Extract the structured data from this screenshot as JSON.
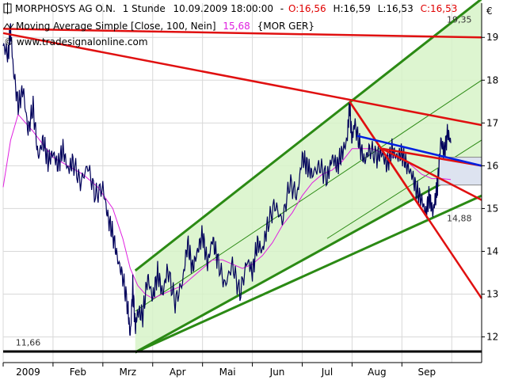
{
  "header": {
    "line1": {
      "name": "MORPHOSYS AG O.N.",
      "interval": "1 Stunde",
      "datetime": "10.09.2009 18:00:00",
      "sep": "-",
      "open": "O:16,56",
      "high": "H:16,59",
      "low": "L:16,53",
      "close": "C:16,53"
    },
    "line2": {
      "label": "Moving Average Simple [Close, 100, Nein]",
      "value": "15,68",
      "instrument": "{MOR GER}"
    },
    "watermark": "© www.tradesignalonline.com"
  },
  "colors": {
    "price": "#00005a",
    "moving_average": "#e020e0",
    "channel_green": "#2b8a14",
    "channel_fill": "#d7f3c8",
    "trend_red": "#e01010",
    "trend_blue": "#0020e0",
    "box_fill": "#dde3f0",
    "support": "#000000",
    "grid": "#d8d8d8",
    "open_value": "#e00000",
    "close_value": "#e00000",
    "ma_value": "#e020e0"
  },
  "chart_data": {
    "type": "line",
    "title": "MORPHOSYS AG O.N. 1 Stunde",
    "currency": "€",
    "y_axis_ticks": [
      "19",
      "18",
      "17",
      "16",
      "15",
      "14",
      "13",
      "12"
    ],
    "ylim": [
      11.4,
      19.8
    ],
    "x_axis_labels": [
      "2009",
      "Feb",
      "Mrz",
      "Apr",
      "Mai",
      "Jun",
      "Jul",
      "Aug",
      "Sep"
    ],
    "x_index_range": [
      0,
      9.6
    ],
    "x_label_index": [
      0.5,
      1.5,
      2.5,
      3.5,
      4.5,
      5.5,
      6.5,
      7.5,
      8.5
    ],
    "price_anchors": [
      [
        0,
        18.8
      ],
      [
        0.1,
        18.6
      ],
      [
        0.15,
        19.2
      ],
      [
        0.2,
        18.3
      ],
      [
        0.3,
        17.4
      ],
      [
        0.4,
        17.8
      ],
      [
        0.5,
        16.8
      ],
      [
        0.6,
        17.4
      ],
      [
        0.7,
        16.2
      ],
      [
        0.8,
        16.6
      ],
      [
        0.9,
        16.1
      ],
      [
        1.0,
        16.3
      ],
      [
        1.1,
        16.0
      ],
      [
        1.2,
        16.4
      ],
      [
        1.3,
        15.9
      ],
      [
        1.4,
        16.1
      ],
      [
        1.55,
        15.6
      ],
      [
        1.7,
        16.0
      ],
      [
        1.85,
        15.3
      ],
      [
        2.0,
        15.5
      ],
      [
        2.1,
        14.8
      ],
      [
        2.2,
        14.4
      ],
      [
        2.3,
        13.8
      ],
      [
        2.4,
        13.4
      ],
      [
        2.5,
        12.7
      ],
      [
        2.55,
        12.0
      ],
      [
        2.6,
        13.2
      ],
      [
        2.65,
        12.2
      ],
      [
        2.7,
        12.6
      ],
      [
        2.8,
        12.5
      ],
      [
        2.9,
        13.4
      ],
      [
        3.0,
        12.9
      ],
      [
        3.1,
        13.5
      ],
      [
        3.2,
        13.0
      ],
      [
        3.3,
        13.6
      ],
      [
        3.45,
        12.8
      ],
      [
        3.6,
        13.3
      ],
      [
        3.7,
        14.2
      ],
      [
        3.8,
        13.6
      ],
      [
        3.9,
        14.0
      ],
      [
        4.0,
        14.4
      ],
      [
        4.1,
        13.7
      ],
      [
        4.2,
        14.3
      ],
      [
        4.3,
        13.8
      ],
      [
        4.45,
        13.2
      ],
      [
        4.6,
        13.7
      ],
      [
        4.75,
        13.0
      ],
      [
        4.9,
        13.8
      ],
      [
        5.0,
        13.5
      ],
      [
        5.1,
        14.2
      ],
      [
        5.2,
        14.0
      ],
      [
        5.3,
        14.6
      ],
      [
        5.45,
        15.1
      ],
      [
        5.6,
        14.7
      ],
      [
        5.75,
        15.6
      ],
      [
        5.9,
        15.3
      ],
      [
        6.0,
        16.2
      ],
      [
        6.1,
        16.0
      ],
      [
        6.2,
        15.8
      ],
      [
        6.35,
        16.0
      ],
      [
        6.5,
        15.7
      ],
      [
        6.6,
        16.2
      ],
      [
        6.7,
        16.0
      ],
      [
        6.8,
        16.3
      ],
      [
        6.9,
        16.6
      ],
      [
        6.95,
        17.4
      ],
      [
        7.0,
        16.6
      ],
      [
        7.05,
        17.0
      ],
      [
        7.15,
        16.5
      ],
      [
        7.25,
        16.1
      ],
      [
        7.35,
        16.4
      ],
      [
        7.5,
        16.2
      ],
      [
        7.6,
        16.3
      ],
      [
        7.7,
        16.0
      ],
      [
        7.8,
        16.4
      ],
      [
        7.9,
        16.2
      ],
      [
        8.0,
        16.3
      ],
      [
        8.1,
        16.0
      ],
      [
        8.2,
        15.8
      ],
      [
        8.3,
        15.4
      ],
      [
        8.4,
        15.2
      ],
      [
        8.48,
        14.88
      ],
      [
        8.55,
        15.3
      ],
      [
        8.62,
        14.9
      ],
      [
        8.68,
        15.3
      ],
      [
        8.72,
        15.6
      ],
      [
        8.78,
        16.6
      ],
      [
        8.85,
        16.3
      ],
      [
        8.92,
        16.8
      ],
      [
        8.98,
        16.53
      ]
    ],
    "moving_average_anchors": [
      [
        0,
        15.5
      ],
      [
        0.15,
        16.6
      ],
      [
        0.3,
        17.2
      ],
      [
        0.45,
        17.0
      ],
      [
        0.6,
        16.8
      ],
      [
        0.8,
        16.5
      ],
      [
        1.0,
        16.2
      ],
      [
        1.3,
        16.0
      ],
      [
        1.6,
        15.8
      ],
      [
        1.9,
        15.5
      ],
      [
        2.2,
        15.0
      ],
      [
        2.4,
        14.3
      ],
      [
        2.55,
        13.6
      ],
      [
        2.7,
        13.2
      ],
      [
        2.85,
        13.0
      ],
      [
        3.0,
        12.9
      ],
      [
        3.2,
        13.0
      ],
      [
        3.4,
        13.1
      ],
      [
        3.6,
        13.2
      ],
      [
        3.8,
        13.4
      ],
      [
        4.0,
        13.6
      ],
      [
        4.2,
        13.8
      ],
      [
        4.4,
        13.8
      ],
      [
        4.6,
        13.7
      ],
      [
        4.8,
        13.6
      ],
      [
        5.0,
        13.7
      ],
      [
        5.2,
        13.9
      ],
      [
        5.4,
        14.2
      ],
      [
        5.6,
        14.6
      ],
      [
        5.8,
        14.9
      ],
      [
        6.0,
        15.3
      ],
      [
        6.2,
        15.6
      ],
      [
        6.4,
        15.8
      ],
      [
        6.6,
        15.9
      ],
      [
        6.8,
        16.1
      ],
      [
        7.0,
        16.4
      ],
      [
        7.2,
        16.4
      ],
      [
        7.4,
        16.4
      ],
      [
        7.6,
        16.3
      ],
      [
        7.8,
        16.2
      ],
      [
        8.0,
        16.2
      ],
      [
        8.2,
        16.0
      ],
      [
        8.4,
        15.8
      ],
      [
        8.6,
        15.7
      ],
      [
        8.8,
        15.7
      ],
      [
        8.98,
        15.68
      ]
    ],
    "channel": {
      "lower": [
        [
          2.65,
          11.64
        ],
        [
          9.6,
          16.1
        ]
      ],
      "upper": [
        [
          2.65,
          13.55
        ],
        [
          9.6,
          19.9
        ]
      ],
      "middle": [
        [
          2.65,
          12.6
        ],
        [
          9.6,
          18.0
        ]
      ],
      "inner_lower": [
        [
          6.5,
          14.3
        ],
        [
          9.6,
          16.6
        ]
      ],
      "parallel_lower": [
        [
          2.65,
          11.64
        ],
        [
          9.6,
          15.3
        ]
      ]
    },
    "red_lines": [
      {
        "from": [
          0.0,
          19.2
        ],
        "to": [
          9.6,
          19.0
        ]
      },
      {
        "from": [
          0.0,
          19.1
        ],
        "to": [
          9.6,
          16.95
        ]
      },
      {
        "from": [
          6.95,
          17.5
        ],
        "to": [
          8.5,
          14.8
        ]
      },
      {
        "from": [
          6.95,
          17.5
        ],
        "to": [
          9.6,
          12.9
        ]
      },
      {
        "from": [
          7.6,
          16.4
        ],
        "to": [
          9.6,
          15.2
        ]
      },
      {
        "from": [
          7.6,
          16.4
        ],
        "to": [
          9.6,
          16.0
        ]
      }
    ],
    "blue_lines": [
      {
        "from": [
          7.1,
          16.7
        ],
        "to": [
          9.6,
          16.0
        ]
      }
    ],
    "box": {
      "x": [
        8.74,
        9.6
      ],
      "y": [
        15.55,
        16.2
      ]
    },
    "support_line": {
      "value": 11.66,
      "label": "11,66"
    },
    "annotations": [
      {
        "text": "19,35",
        "x": 8.9,
        "y": 19.35
      },
      {
        "text": "14,88",
        "x": 8.9,
        "y": 14.7
      },
      {
        "text": "11,66",
        "x": 0.25,
        "y": 11.8
      }
    ]
  }
}
